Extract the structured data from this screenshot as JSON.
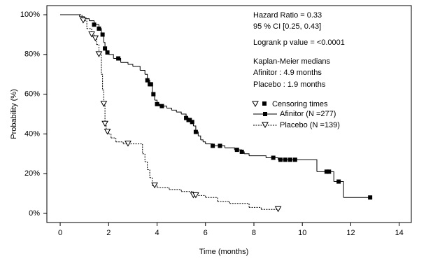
{
  "chart_data": {
    "type": "km",
    "x_label": "Time (months)",
    "y_label": "Probability (%)",
    "xlim": [
      -0.55,
      14.5
    ],
    "ylim": [
      -4.6,
      104.6
    ],
    "xticks": [
      0,
      2,
      4,
      6,
      8,
      10,
      12,
      14
    ],
    "yticks": [
      {
        "value": 0,
        "label": "0%"
      },
      {
        "value": 20,
        "label": "20%"
      },
      {
        "value": 40,
        "label": "40%"
      },
      {
        "value": 60,
        "label": "60%"
      },
      {
        "value": 80,
        "label": "80%"
      },
      {
        "value": 100,
        "label": "100%"
      }
    ],
    "annotations": [
      "Hazard Ratio = 0.33",
      "95 % CI [0.25, 0.43]",
      "Logrank p value = <0.0001",
      "Kaplan-Meier medians",
      "Afinitor : 4.9 months",
      "Placebo : 1.9 months"
    ],
    "censor_legend": "Censoring times",
    "series": [
      {
        "name": "Afinitor  (N =277)",
        "color": "#000000",
        "line_style": "solid",
        "marker": "square",
        "x": [
          0,
          0.8,
          1.0,
          1.2,
          1.4,
          1.6,
          1.7,
          1.8,
          1.85,
          1.9,
          2.0,
          2.2,
          2.5,
          2.8,
          3.0,
          3.3,
          3.5,
          3.6,
          3.7,
          3.8,
          3.9,
          4.0,
          4.1,
          4.4,
          4.6,
          4.8,
          5.0,
          5.2,
          5.3,
          5.4,
          5.5,
          5.6,
          5.7,
          5.8,
          5.9,
          6.0,
          6.3,
          6.8,
          7.2,
          7.5,
          7.6,
          7.8,
          8.5,
          9.0,
          10.6,
          11.3,
          11.7,
          12.8
        ],
        "values": [
          100,
          99,
          98,
          97,
          95,
          93,
          90,
          86,
          83,
          81,
          80,
          78,
          76,
          75,
          74,
          72,
          70,
          67,
          65,
          60,
          57,
          55,
          54,
          53,
          52,
          51,
          50,
          48,
          47,
          46,
          44,
          41,
          39,
          37,
          36,
          35,
          34,
          33,
          32,
          31,
          30,
          29,
          28,
          27,
          21,
          16,
          8,
          8
        ],
        "censor_x": [
          1.4,
          1.6,
          1.75,
          1.85,
          1.95,
          2.4,
          3.6,
          3.7,
          3.75,
          3.85,
          4.0,
          4.2,
          5.2,
          5.3,
          5.35,
          5.45,
          5.6,
          6.3,
          6.6,
          7.3,
          7.5,
          8.8,
          9.1,
          9.3,
          9.5,
          9.7,
          11.0,
          11.1,
          11.5,
          12.8
        ],
        "censor_values": [
          95,
          93,
          90,
          83,
          81,
          78,
          67,
          65,
          65,
          60,
          55,
          54,
          48,
          47,
          47,
          46,
          41,
          34,
          34,
          32,
          31,
          28,
          27,
          27,
          27,
          27,
          21,
          21,
          16,
          8
        ]
      },
      {
        "name": "Placebo  (N =139)",
        "color": "#000000",
        "line_style": "dotted",
        "marker": "triangle-down",
        "x": [
          0,
          0.9,
          1.1,
          1.3,
          1.4,
          1.5,
          1.6,
          1.7,
          1.75,
          1.8,
          1.85,
          1.9,
          2.0,
          2.1,
          2.3,
          2.6,
          3.4,
          3.5,
          3.6,
          3.7,
          3.8,
          4.0,
          4.5,
          5.0,
          5.5,
          6.0,
          6.5,
          7.0,
          7.8,
          8.3,
          9.0
        ],
        "values": [
          100,
          97,
          93,
          90,
          88,
          85,
          80,
          70,
          62,
          55,
          45,
          41,
          40,
          38,
          36,
          35,
          30,
          26,
          22,
          18,
          14,
          13,
          12,
          11,
          9,
          8,
          6,
          5,
          3,
          2,
          2
        ],
        "censor_x": [
          0.95,
          1.3,
          1.45,
          1.6,
          1.8,
          1.85,
          1.95,
          2.8,
          3.9,
          5.5,
          5.6,
          9.0
        ],
        "censor_values": [
          97,
          90,
          88,
          80,
          55,
          45,
          41,
          35,
          14,
          9,
          9,
          2
        ]
      }
    ]
  }
}
